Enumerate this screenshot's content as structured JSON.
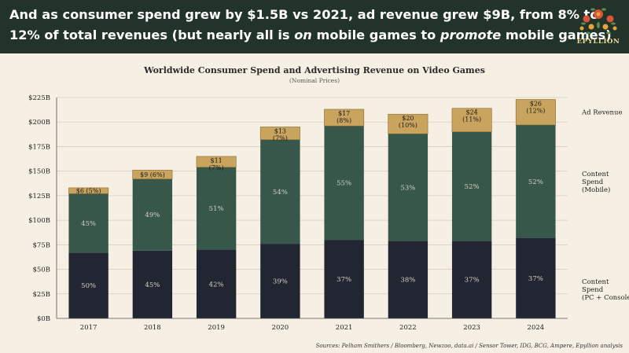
{
  "header": {
    "headline_parts": [
      {
        "text": "And as consumer spend grew by $1.5B vs 2021, ad revenue grew $9B, from 8% to",
        "italic": false,
        "br": true
      },
      {
        "text": "12% of total revenues (but nearly all is ",
        "italic": false
      },
      {
        "text": "on",
        "italic": true
      },
      {
        "text": " mobile games to ",
        "italic": false
      },
      {
        "text": "promote",
        "italic": true
      },
      {
        "text": " mobile games)",
        "italic": false
      }
    ],
    "brand": "EPYLLION",
    "colors": {
      "background": "#22342a",
      "text": "#ffffff",
      "brand": "#f0d79a"
    }
  },
  "source": "Sources: Pelham Smithers / Bloomberg, Newzoo, data.ai / Sensor Tower, IDG, BCG, Ampere, Epyllion analysis",
  "chart_data": {
    "type": "bar",
    "stacked": true,
    "title": "Worldwide Consumer Spend and Advertising Revenue on Video Games",
    "subtitle": "(Nominal Prices)",
    "categories": [
      "2017",
      "2018",
      "2019",
      "2020",
      "2021",
      "2022",
      "2023",
      "2024"
    ],
    "ylim": [
      0,
      225
    ],
    "yticks": [
      0,
      25,
      50,
      75,
      100,
      125,
      150,
      175,
      200,
      225
    ],
    "ytick_labels": [
      "$0B",
      "$25B",
      "$50B",
      "$75B",
      "$100B",
      "$125B",
      "$150B",
      "$175B",
      "$200B",
      "$225B"
    ],
    "grid": true,
    "series": [
      {
        "name": "Content Spend (PC + Console)",
        "color": "#222632",
        "values": [
          67,
          69,
          70,
          76,
          80,
          79,
          79,
          82
        ],
        "labels": [
          "50%",
          "45%",
          "42%",
          "39%",
          "37%",
          "38%",
          "37%",
          "37%"
        ]
      },
      {
        "name": "Content Spend (Mobile)",
        "color": "#36574a",
        "values": [
          60,
          73,
          84,
          106,
          116,
          109,
          111,
          115
        ],
        "labels": [
          "45%",
          "49%",
          "51%",
          "54%",
          "55%",
          "53%",
          "52%",
          "52%"
        ]
      },
      {
        "name": "Ad Revenue",
        "color": "#c9a45e",
        "values": [
          6,
          9,
          11,
          13,
          17,
          20,
          24,
          26
        ],
        "labels": [
          "$6 (5%)",
          "$9 (6%)",
          "$11 (7%)",
          "$13 (7%)",
          "$17 (8%)",
          "$20 (10%)",
          "$24 (11%)",
          "$26 (12%)"
        ]
      }
    ],
    "legend_placement": "right",
    "legend_labels": [
      {
        "series": 2,
        "lines": [
          "Ad Revenue"
        ]
      },
      {
        "series": 1,
        "lines": [
          "Content",
          "Spend",
          "(Mobile)"
        ]
      },
      {
        "series": 0,
        "lines": [
          "Content",
          "Spend",
          "(PC + Console)"
        ]
      }
    ]
  }
}
